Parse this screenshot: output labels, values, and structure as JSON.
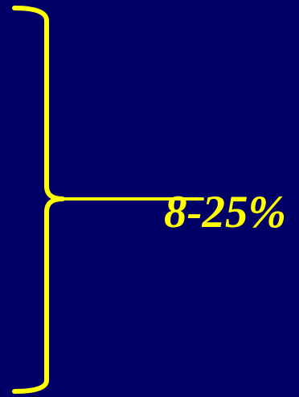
{
  "label": {
    "text": "8-25%"
  },
  "colors": {
    "background": "#000066",
    "accent": "#ffff00"
  },
  "icons": {
    "brace": "right-curly-brace-icon",
    "pointer": "horizontal-pointer-line"
  }
}
